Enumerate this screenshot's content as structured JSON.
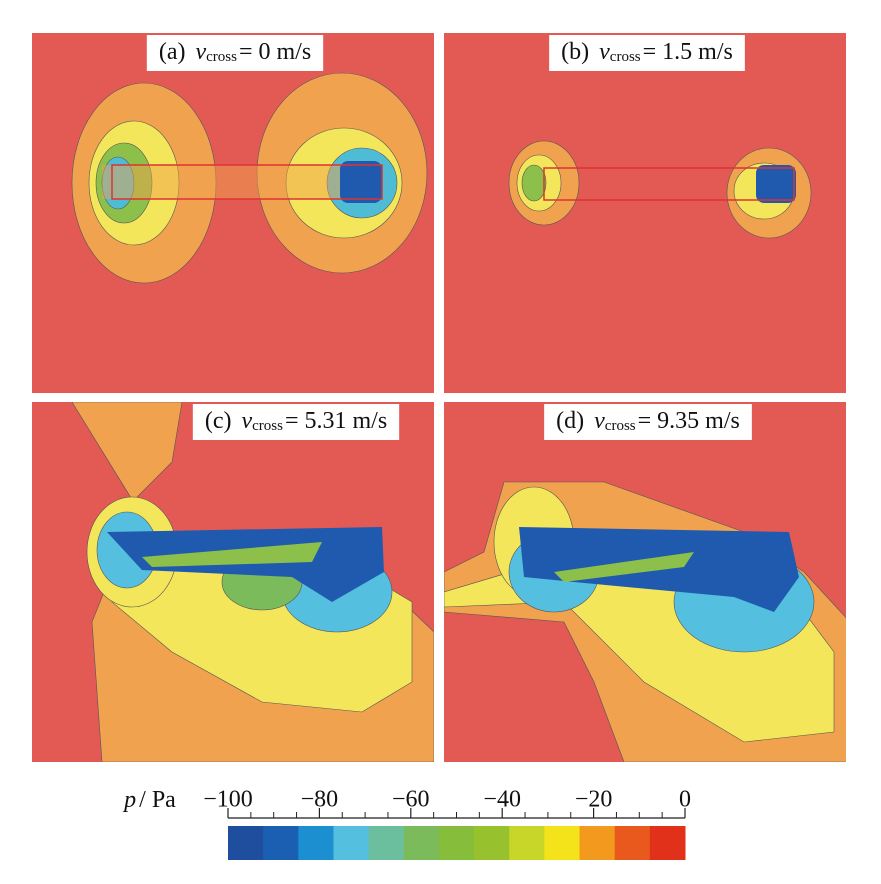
{
  "chart_data": {
    "type": "contour",
    "panels": [
      {
        "label": "(a)",
        "symbol": "v",
        "subscript": "cross",
        "text": "= 0 m/s"
      },
      {
        "label": "(b)",
        "symbol": "v",
        "subscript": "cross",
        "text": "= 1.5 m/s"
      },
      {
        "label": "(c)",
        "symbol": "v",
        "subscript": "cross",
        "text": "= 5.31 m/s"
      },
      {
        "label": "(d)",
        "symbol": "v",
        "subscript": "cross",
        "text": "= 9.35 m/s"
      }
    ],
    "colorbar": {
      "symbol": "p",
      "unit": "/ Pa",
      "lim": [
        -100,
        0
      ],
      "ticks": [
        {
          "value": -100,
          "label": "−100"
        },
        {
          "value": -80,
          "label": "−80"
        },
        {
          "value": -60,
          "label": "−60"
        },
        {
          "value": -40,
          "label": "−40"
        },
        {
          "value": -20,
          "label": "−20"
        },
        0
      ],
      "minor_ticks": [
        -95,
        -90,
        -85,
        -75,
        -70,
        -65,
        -55,
        -50,
        -45,
        -35,
        -30,
        -25,
        -15,
        -10,
        -5
      ],
      "colors": [
        "#1f4e9e",
        "#1b5fb2",
        "#1b8fd0",
        "#54bfdf",
        "#6bbf9f",
        "#7bbb5c",
        "#86bd3a",
        "#97c22d",
        "#c8d62a",
        "#f4e31b",
        "#f39a1e",
        "#e9591d",
        "#e2311b"
      ]
    }
  }
}
